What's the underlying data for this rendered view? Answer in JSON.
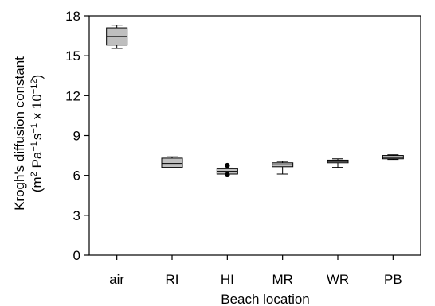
{
  "chart_data": {
    "type": "box",
    "xlabel": "Beach location",
    "ylabel_line1": "Krogh's diffusion constant",
    "ylabel_line2_parts": [
      "(m",
      "2",
      " Pa",
      "−1",
      "s",
      "−1",
      " x 10",
      "−12",
      ")"
    ],
    "ylim": [
      0,
      18
    ],
    "yticks": [
      0,
      3,
      6,
      9,
      12,
      15,
      18
    ],
    "categories": [
      "air",
      "RI",
      "HI",
      "MR",
      "WR",
      "PB"
    ],
    "boxes": [
      {
        "label": "air",
        "min": 15.55,
        "q1": 15.8,
        "median": 16.45,
        "q3": 17.1,
        "max": 17.3,
        "outliers": []
      },
      {
        "label": "RI",
        "min": 6.55,
        "q1": 6.6,
        "median": 6.9,
        "q3": 7.3,
        "max": 7.4,
        "outliers": []
      },
      {
        "label": "HI",
        "min": 6.1,
        "q1": 6.1,
        "median": 6.3,
        "q3": 6.5,
        "max": 6.55,
        "outliers": [
          6.75,
          6.05
        ]
      },
      {
        "label": "MR",
        "min": 6.1,
        "q1": 6.65,
        "median": 6.8,
        "q3": 6.95,
        "max": 7.05,
        "outliers": []
      },
      {
        "label": "WR",
        "min": 6.6,
        "q1": 6.95,
        "median": 7.05,
        "q3": 7.15,
        "max": 7.25,
        "outliers": []
      },
      {
        "label": "PB",
        "min": 7.2,
        "q1": 7.25,
        "median": 7.35,
        "q3": 7.5,
        "max": 7.55,
        "outliers": []
      }
    ],
    "box_fill": "#bfbfbf",
    "stroke": "#000000"
  }
}
